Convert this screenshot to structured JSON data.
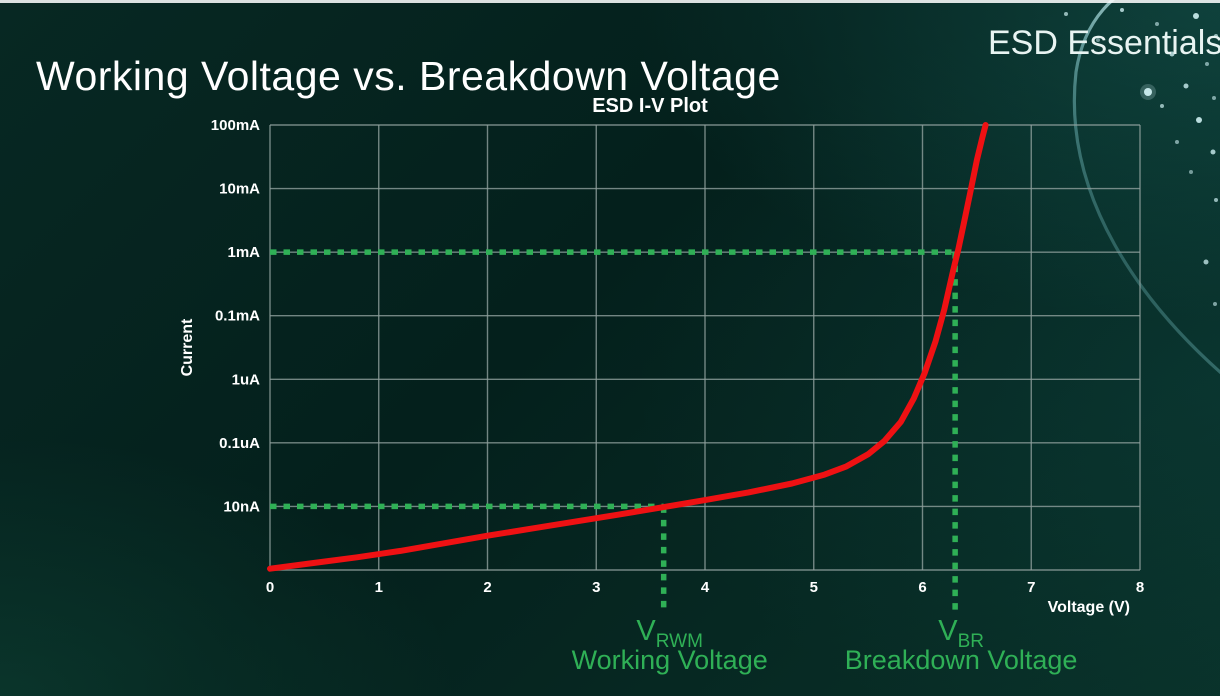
{
  "page": {
    "title": "Working Voltage vs. Breakdown Voltage",
    "brand": "ESD Essentials"
  },
  "colors": {
    "background": "#06261F",
    "text": "#FFFFFF",
    "curve_red": "#EE1113",
    "annotation_green": "#2FB056",
    "grid_gray": "#8FA09D"
  },
  "chart_data": {
    "type": "line",
    "title": "ESD I-V Plot",
    "xlabel": "Voltage (V)",
    "ylabel": "Current",
    "xlim": [
      0,
      8
    ],
    "x_ticks": [
      0,
      1,
      2,
      3,
      4,
      5,
      6,
      7,
      8
    ],
    "y_scale": "log (equal decade rows, bottom row unlabeled)",
    "y_rows": 7,
    "y_tick_labels_top_to_bottom": [
      "100mA",
      "10mA",
      "1mA",
      "0.1mA",
      "1uA",
      "0.1uA",
      "10nA"
    ],
    "grid": true,
    "legend": "none",
    "series": [
      {
        "name": "ESD protection device I-V curve",
        "color": "#EE1113",
        "points_voltage_vs_row_from_bottom": [
          [
            0.0,
            0.02
          ],
          [
            0.4,
            0.11
          ],
          [
            0.8,
            0.2
          ],
          [
            1.2,
            0.3
          ],
          [
            1.6,
            0.42
          ],
          [
            2.0,
            0.54
          ],
          [
            2.4,
            0.65
          ],
          [
            2.8,
            0.76
          ],
          [
            3.2,
            0.87
          ],
          [
            3.62,
            0.99
          ],
          [
            4.0,
            1.1
          ],
          [
            4.4,
            1.22
          ],
          [
            4.8,
            1.36
          ],
          [
            5.1,
            1.5
          ],
          [
            5.3,
            1.63
          ],
          [
            5.5,
            1.82
          ],
          [
            5.65,
            2.03
          ],
          [
            5.8,
            2.33
          ],
          [
            5.92,
            2.7
          ],
          [
            6.02,
            3.1
          ],
          [
            6.12,
            3.6
          ],
          [
            6.2,
            4.1
          ],
          [
            6.28,
            4.7
          ],
          [
            6.33,
            5.05
          ],
          [
            6.38,
            5.45
          ],
          [
            6.44,
            5.95
          ],
          [
            6.5,
            6.45
          ],
          [
            6.55,
            6.8
          ],
          [
            6.58,
            7.0
          ]
        ]
      }
    ],
    "annotations": [
      {
        "symbol": "V",
        "subscript": "RWM",
        "label": "Working Voltage",
        "voltage": 3.62,
        "current_reading": "10nA",
        "row_from_bottom": 1,
        "color": "#2FB056"
      },
      {
        "symbol": "V",
        "subscript": "BR",
        "label": "Breakdown Voltage",
        "voltage": 6.3,
        "current_reading": "1mA",
        "row_from_bottom": 5,
        "color": "#2FB056"
      }
    ]
  }
}
